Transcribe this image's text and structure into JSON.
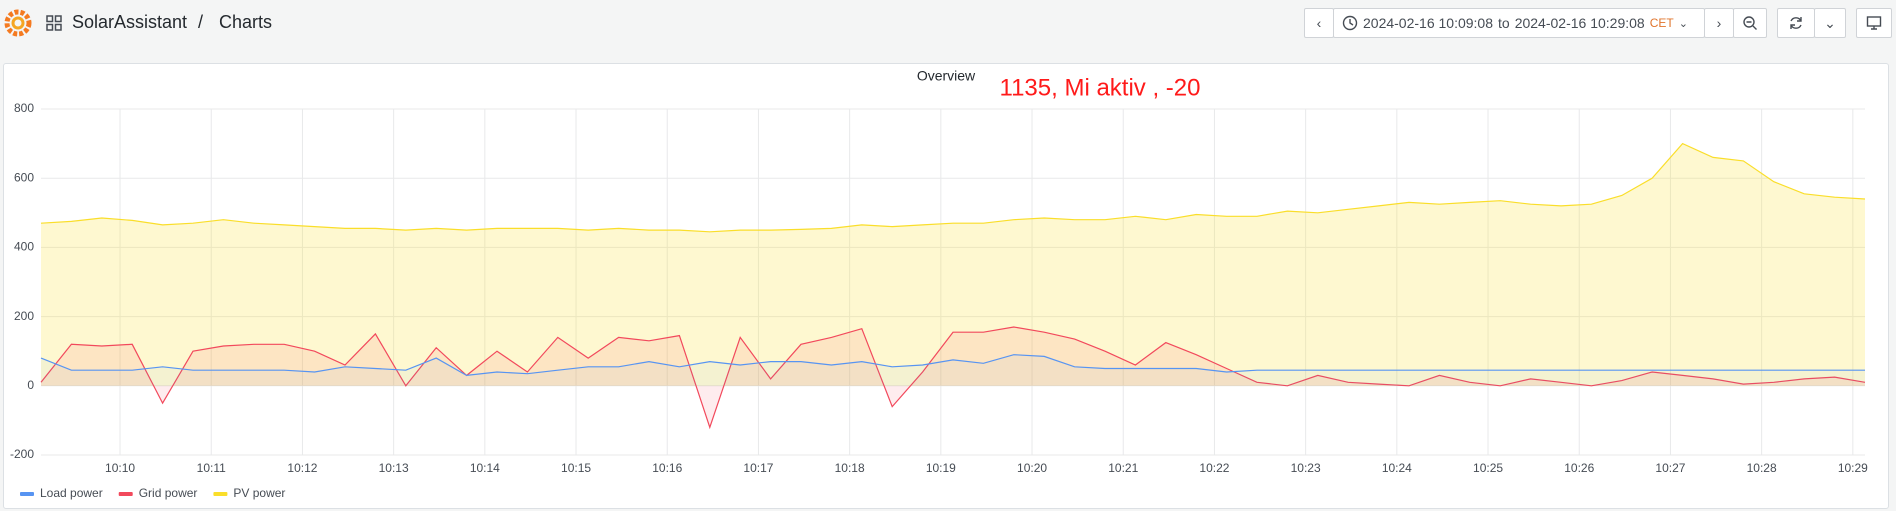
{
  "header": {
    "app": "SolarAssistant",
    "separator": "/",
    "page": "Charts",
    "time_from": "2024-02-16 10:09:08",
    "time_to_word": "to",
    "time_to": "2024-02-16 10:29:08",
    "timezone": "CET"
  },
  "chart_data": {
    "type": "area",
    "title": "Overview",
    "annotation": "1135, Mi aktiv , -20",
    "x": [
      "10:09:08",
      "10:09:28",
      "10:09:48",
      "10:10:08",
      "10:10:28",
      "10:10:48",
      "10:11:08",
      "10:11:28",
      "10:11:48",
      "10:12:08",
      "10:12:28",
      "10:12:48",
      "10:13:08",
      "10:13:28",
      "10:13:48",
      "10:14:08",
      "10:14:28",
      "10:14:48",
      "10:15:08",
      "10:15:28",
      "10:15:48",
      "10:16:08",
      "10:16:28",
      "10:16:48",
      "10:17:08",
      "10:17:28",
      "10:17:48",
      "10:18:08",
      "10:18:28",
      "10:18:48",
      "10:19:08",
      "10:19:28",
      "10:19:48",
      "10:20:08",
      "10:20:28",
      "10:20:48",
      "10:21:08",
      "10:21:28",
      "10:21:48",
      "10:22:08",
      "10:22:28",
      "10:22:48",
      "10:23:08",
      "10:23:28",
      "10:23:48",
      "10:24:08",
      "10:24:28",
      "10:24:48",
      "10:25:08",
      "10:25:28",
      "10:25:48",
      "10:26:08",
      "10:26:28",
      "10:26:48",
      "10:27:08",
      "10:27:28",
      "10:27:48",
      "10:28:08",
      "10:28:28",
      "10:28:48",
      "10:29:08"
    ],
    "series": [
      {
        "name": "Load power",
        "color": "#5794f2",
        "fill": "rgba(87,148,242,0.06)",
        "values": [
          80,
          45,
          45,
          45,
          55,
          45,
          45,
          45,
          45,
          40,
          55,
          50,
          45,
          80,
          30,
          40,
          35,
          45,
          55,
          55,
          70,
          55,
          70,
          60,
          70,
          70,
          60,
          70,
          55,
          60,
          75,
          65,
          90,
          85,
          55,
          50,
          50,
          50,
          50,
          40,
          45,
          45,
          45,
          45,
          45,
          45,
          45,
          45,
          45,
          45,
          45,
          45,
          45,
          45,
          45,
          45,
          45,
          45,
          45,
          45,
          45
        ]
      },
      {
        "name": "Grid power",
        "color": "#f2495c",
        "fill": "rgba(242,73,92,0.10)",
        "values": [
          10,
          120,
          115,
          120,
          -50,
          100,
          115,
          120,
          120,
          100,
          60,
          150,
          0,
          110,
          30,
          100,
          40,
          140,
          80,
          140,
          130,
          145,
          -120,
          140,
          20,
          120,
          140,
          165,
          -60,
          40,
          155,
          155,
          170,
          155,
          135,
          100,
          60,
          125,
          90,
          50,
          10,
          0,
          30,
          10,
          5,
          0,
          30,
          10,
          0,
          20,
          10,
          0,
          15,
          40,
          30,
          20,
          5,
          10,
          20,
          25,
          10
        ]
      },
      {
        "name": "PV power",
        "color": "#fade2a",
        "fill": "rgba(250,222,42,0.22)",
        "values": [
          470,
          475,
          485,
          478,
          465,
          470,
          480,
          470,
          465,
          460,
          455,
          455,
          450,
          455,
          450,
          455,
          455,
          455,
          450,
          455,
          450,
          450,
          445,
          450,
          450,
          452,
          455,
          465,
          460,
          465,
          470,
          470,
          480,
          485,
          480,
          480,
          490,
          480,
          495,
          490,
          490,
          505,
          500,
          510,
          520,
          530,
          525,
          530,
          535,
          525,
          520,
          525,
          550,
          600,
          700,
          660,
          650,
          590,
          555,
          545,
          540
        ]
      }
    ],
    "xlim": [
      "10:09:08",
      "10:29:08"
    ],
    "xticks": [
      "10:10",
      "10:11",
      "10:12",
      "10:13",
      "10:14",
      "10:15",
      "10:16",
      "10:17",
      "10:18",
      "10:19",
      "10:20",
      "10:21",
      "10:22",
      "10:23",
      "10:24",
      "10:25",
      "10:26",
      "10:27",
      "10:28",
      "10:29"
    ],
    "ylim": [
      -200,
      800
    ],
    "yticks": [
      -200,
      0,
      200,
      400,
      600,
      800
    ],
    "grid": true,
    "legend": "bottom-left"
  }
}
